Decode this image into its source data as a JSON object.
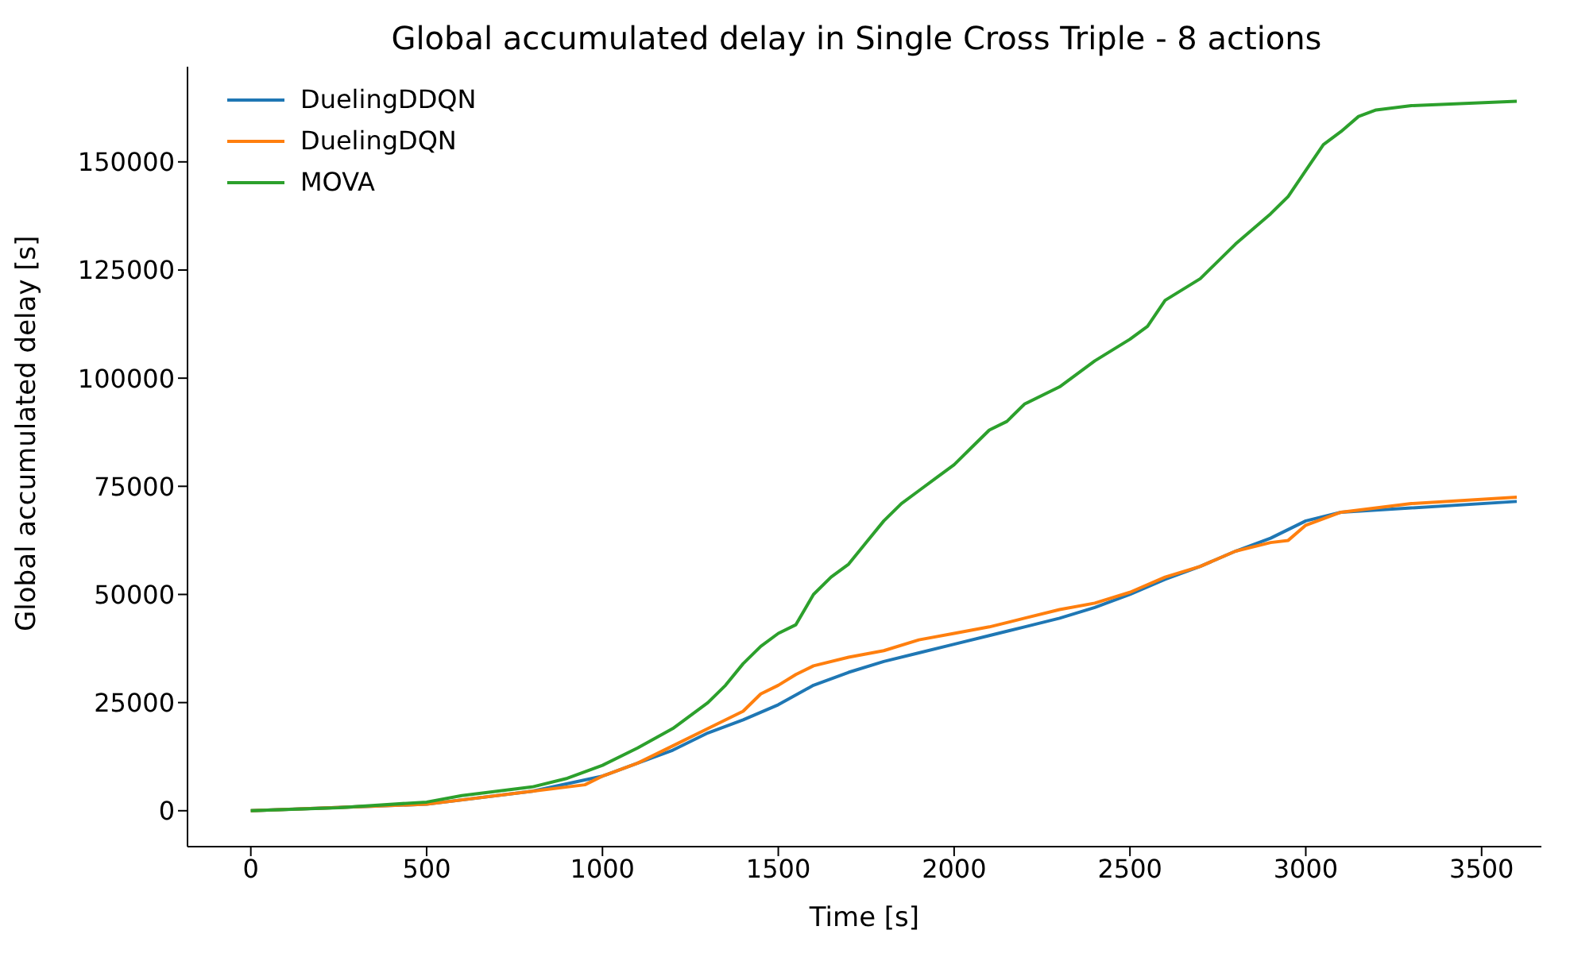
{
  "chart_data": {
    "type": "line",
    "title": "Global accumulated delay in Single Cross Triple - 8 actions",
    "xlabel": "Time [s]",
    "ylabel": "Global accumulated delay [s]",
    "xlim": [
      -180,
      3670
    ],
    "xticks": [
      0,
      500,
      1000,
      1500,
      2000,
      2500,
      3000,
      3500
    ],
    "ylim": [
      -8300,
      172000
    ],
    "yticks": [
      0,
      25000,
      50000,
      75000,
      100000,
      125000,
      150000
    ],
    "grid": false,
    "legend": "top left",
    "marker": "none",
    "line_style": "solid",
    "series": [
      {
        "name": "DuelingDDQN",
        "color": "#1f77b4",
        "x": [
          0,
          500,
          800,
          1000,
          1100,
          1200,
          1300,
          1400,
          1500,
          1600,
          1700,
          1800,
          1900,
          2000,
          2100,
          2200,
          2300,
          2400,
          2500,
          2600,
          2700,
          2800,
          2900,
          3000,
          3100,
          3300,
          3600
        ],
        "values": [
          0,
          1500,
          4500,
          8000,
          11000,
          14000,
          18000,
          21000,
          24500,
          29000,
          32000,
          34500,
          36500,
          38500,
          40500,
          42500,
          44500,
          47000,
          50000,
          53500,
          56500,
          60000,
          63000,
          67000,
          69000,
          70000,
          71500
        ]
      },
      {
        "name": "DuelingDQN",
        "color": "#ff7f0e",
        "x": [
          0,
          500,
          800,
          950,
          1000,
          1100,
          1200,
          1300,
          1400,
          1450,
          1500,
          1550,
          1600,
          1700,
          1800,
          1900,
          2000,
          2100,
          2200,
          2300,
          2400,
          2500,
          2600,
          2700,
          2800,
          2900,
          2950,
          3000,
          3100,
          3300,
          3600
        ],
        "values": [
          0,
          1500,
          4500,
          6000,
          8000,
          11000,
          15000,
          19000,
          23000,
          27000,
          29000,
          31500,
          33500,
          35500,
          37000,
          39500,
          41000,
          42500,
          44500,
          46500,
          48000,
          50500,
          54000,
          56500,
          60000,
          62000,
          62500,
          66000,
          69000,
          71000,
          72500
        ]
      },
      {
        "name": "MOVA",
        "color": "#2ca02c",
        "x": [
          0,
          250,
          500,
          600,
          800,
          900,
          1000,
          1100,
          1200,
          1300,
          1350,
          1400,
          1450,
          1500,
          1550,
          1600,
          1650,
          1700,
          1750,
          1800,
          1850,
          1900,
          1950,
          2000,
          2050,
          2100,
          2150,
          2200,
          2300,
          2400,
          2500,
          2550,
          2600,
          2700,
          2800,
          2900,
          2950,
          3000,
          3050,
          3100,
          3150,
          3200,
          3300,
          3600
        ],
        "values": [
          0,
          700,
          2000,
          3500,
          5500,
          7500,
          10500,
          14500,
          19000,
          25000,
          29000,
          34000,
          38000,
          41000,
          43000,
          50000,
          54000,
          57000,
          62000,
          67000,
          71000,
          74000,
          77000,
          80000,
          84000,
          88000,
          90000,
          94000,
          98000,
          104000,
          109000,
          112000,
          118000,
          123000,
          131000,
          138000,
          142000,
          148000,
          154000,
          157000,
          160500,
          162000,
          163000,
          164000
        ]
      }
    ]
  }
}
